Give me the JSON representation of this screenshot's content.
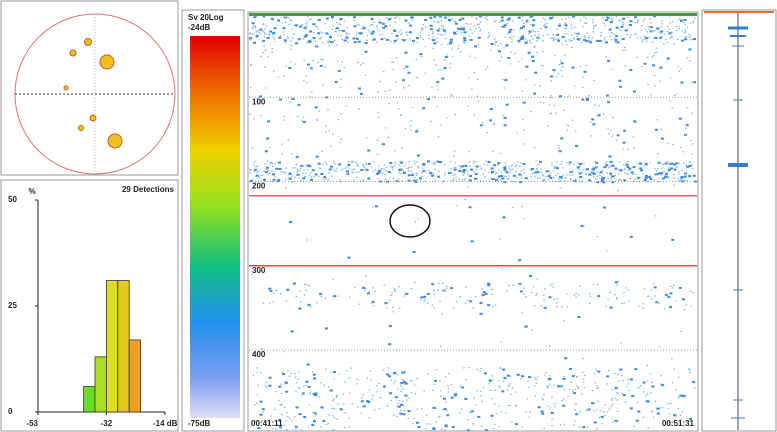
{
  "histogram": {
    "type": "histogram",
    "title": "29 Detections",
    "y_label": "%",
    "bins": [
      -39,
      -35.5,
      -32,
      -28.5,
      -25,
      -21.5
    ],
    "values": [
      6,
      13,
      31,
      31,
      17
    ],
    "colors": [
      "#66dd22",
      "#aadd22",
      "#dddd22",
      "#e8c820",
      "#f0a020"
    ],
    "xlim": [
      -53,
      -14
    ],
    "xticks": [
      -53,
      -32,
      {
        "value": -14,
        "label": "-14 dB"
      }
    ],
    "ylim": [
      0,
      50
    ],
    "yticks": [
      0,
      25,
      50
    ]
  },
  "colorbar": {
    "title": "Sv 20Log",
    "top": {
      "value": -24,
      "label": "-24dB"
    },
    "bottom": {
      "value": -75,
      "label": "-75dB"
    }
  },
  "echogram": {
    "ylim": [
      0,
      495
    ],
    "yticks": [
      100,
      200,
      300,
      400
    ],
    "gates": [
      217,
      300
    ],
    "start_time": "00:41:11",
    "end_time": "00:51:31"
  }
}
